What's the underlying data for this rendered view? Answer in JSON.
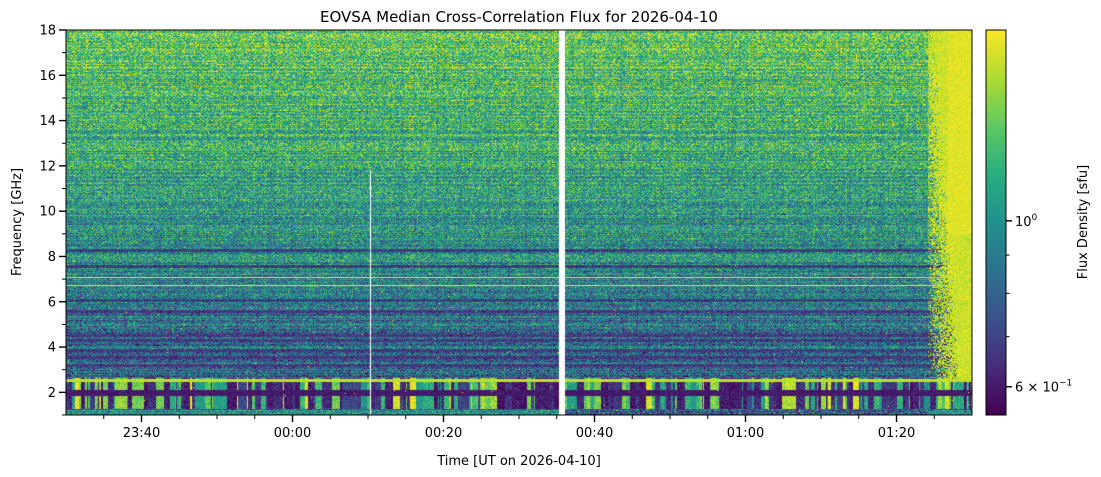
{
  "chart_data": {
    "type": "heatmap",
    "title": "EOVSA Median Cross-Correlation Flux for 2026-04-10",
    "xlabel": "Time [UT on 2026-04-10]",
    "ylabel": "Frequency [GHz]",
    "colorbar_label": "Flux Density [sfu]",
    "colormap": "viridis",
    "colorbar_scale": "log",
    "colorbar_range": [
      0.55,
      1.8
    ],
    "x_range_minutes": [
      -30,
      90
    ],
    "y_range_ghz": [
      1.0,
      18.0
    ],
    "x_ticks": [
      {
        "minute": -20,
        "label": "23:40"
      },
      {
        "minute": 0,
        "label": "00:00"
      },
      {
        "minute": 20,
        "label": "00:20"
      },
      {
        "minute": 40,
        "label": "00:40"
      },
      {
        "minute": 60,
        "label": "01:00"
      },
      {
        "minute": 80,
        "label": "01:20"
      }
    ],
    "x_minor_tick_minutes": [
      -25,
      -15,
      -10,
      -5,
      5,
      10,
      15,
      25,
      30,
      35,
      45,
      50,
      55,
      65,
      70,
      75,
      85
    ],
    "y_ticks": [
      {
        "value": 2,
        "label": "2"
      },
      {
        "value": 4,
        "label": "4"
      },
      {
        "value": 6,
        "label": "6"
      },
      {
        "value": 8,
        "label": "8"
      },
      {
        "value": 10,
        "label": "10"
      },
      {
        "value": 12,
        "label": "12"
      },
      {
        "value": 14,
        "label": "14"
      },
      {
        "value": 16,
        "label": "16"
      },
      {
        "value": 18,
        "label": "18"
      }
    ],
    "y_minor_ticks": [
      1,
      3,
      5,
      7,
      9,
      11,
      13,
      15,
      17
    ],
    "colorbar_ticks": [
      {
        "value": 1.0,
        "base": "10",
        "exp": "0",
        "prefix": ""
      },
      {
        "value": 0.6,
        "base": "10",
        "exp": "−1",
        "prefix": "6 × "
      }
    ],
    "colorbar_minor_ticks": [
      0.7,
      0.8,
      0.9
    ],
    "data_gaps_minutes": [
      [
        35.3,
        36.0
      ]
    ],
    "thin_gap_minute": 10.2,
    "thin_gap_top_ghz": 11.8,
    "bright_bands_ghz": [
      2.55,
      6.75,
      7.1
    ],
    "dark_bands_ghz": [
      1.95,
      3.2,
      3.55,
      3.85,
      4.3,
      4.55,
      5.6,
      6.1,
      7.6,
      8.3
    ],
    "high_flux_onset_minute": 84
  }
}
